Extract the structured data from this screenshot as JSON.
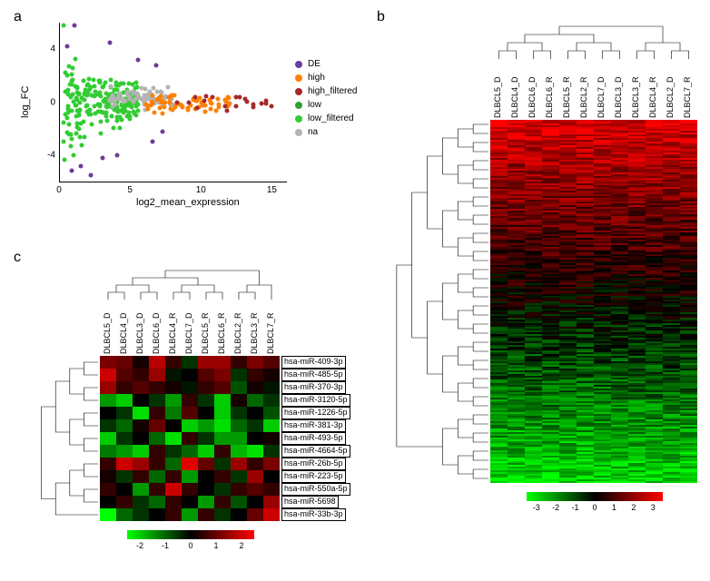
{
  "panel_labels": {
    "a": "a",
    "b": "b",
    "c": "c"
  },
  "scatter": {
    "type": "scatter",
    "xlabel": "log2_mean_expression",
    "ylabel": "log_FC",
    "xlim": [
      0,
      16
    ],
    "ylim": [
      -6,
      6
    ],
    "xticks": [
      0,
      5,
      10,
      15
    ],
    "yticks": [
      -4,
      0,
      4
    ],
    "background_color": "#ffffff",
    "legend_items": [
      {
        "label": "DE",
        "color": "#6a3d9a"
      },
      {
        "label": "high",
        "color": "#ff7f00"
      },
      {
        "label": "high_filtered",
        "color": "#a52a2a"
      },
      {
        "label": "low",
        "color": "#33a02c"
      },
      {
        "label": "low_filtered",
        "color": "#33cc33"
      },
      {
        "label": "na",
        "color": "#b3b3b3"
      }
    ],
    "marker_size": 5,
    "groups": {
      "low_filtered": {
        "color": "#33cc33",
        "n": 220,
        "x_range": [
          0.2,
          5.5
        ],
        "y_mean": 0,
        "y_spread": 3.0
      },
      "na": {
        "color": "#b3b3b3",
        "n": 70,
        "x_range": [
          3.5,
          8.0
        ],
        "y_mean": 0.3,
        "y_spread": 1.0
      },
      "high": {
        "color": "#ff7f00",
        "n": 60,
        "x_range": [
          6.0,
          12.0
        ],
        "y_mean": -0.2,
        "y_spread": 1.0
      },
      "high_filtered": {
        "color": "#a52a2a",
        "n": 20,
        "x_range": [
          8.0,
          15.5
        ],
        "y_mean": 0.0,
        "y_spread": 0.8
      },
      "DE": {
        "color": "#6a3d9a",
        "points": [
          [
            1.0,
            5.8
          ],
          [
            0.5,
            4.2
          ],
          [
            0.8,
            -5.2
          ],
          [
            1.5,
            -4.8
          ],
          [
            2.2,
            -5.5
          ],
          [
            3.0,
            -4.2
          ],
          [
            3.5,
            4.5
          ],
          [
            6.5,
            -3.0
          ],
          [
            7.2,
            -2.2
          ],
          [
            6.8,
            2.8
          ],
          [
            5.5,
            3.2
          ],
          [
            4.0,
            -4.0
          ]
        ]
      }
    }
  },
  "heatmap_large": {
    "type": "heatmap",
    "columns": [
      "DLBCL5_D",
      "DLBCL4_D",
      "DLBCL6_D",
      "DLBCL6_R",
      "DLBCL5_R",
      "DLBCL2_R",
      "DLBCL7_D",
      "DLBCL3_D",
      "DLBCL3_R",
      "DLBCL4_R",
      "DLBCL2_D",
      "DLBCL7_R"
    ],
    "n_rows": 200,
    "value_range": [
      -3.5,
      3.5
    ],
    "color_low": "#00ff00",
    "color_mid": "#000000",
    "color_high": "#ff0000",
    "colorbar_ticks": [
      -3,
      -2,
      -1,
      0,
      1,
      2,
      3
    ],
    "col_label_fontsize": 9
  },
  "heatmap_small": {
    "type": "heatmap",
    "columns": [
      "DLBCL5_D",
      "DLBCL4_D",
      "DLBCL3_D",
      "DLBCL6_D",
      "DLBCL4_R",
      "DLBCL7_D",
      "DLBCL5_R",
      "DLBCL6_R",
      "DLBCL2_R",
      "DLBCL3_R",
      "DLBCL7_R"
    ],
    "rows": [
      "hsa-miR-409-3p",
      "hsa-miR-485-5p",
      "hsa-miR-370-3p",
      "hsa-miR-3120-5p",
      "hsa-miR-1226-5p",
      "hsa-miR-381-3p",
      "hsa-miR-493-5p",
      "hsa-miR-4664-5p",
      "hsa-miR-26b-5p",
      "hsa-miR-223-5p",
      "hsa-miR-550a-5p",
      "hsa-miR-5698",
      "hsa-miR-33b-3p"
    ],
    "values": [
      [
        1.2,
        1.0,
        0.2,
        1.8,
        0.5,
        -0.5,
        1.5,
        1.5,
        0.5,
        1.2,
        0.8
      ],
      [
        2.0,
        0.8,
        0.5,
        1.5,
        -0.2,
        0.0,
        0.8,
        1.2,
        -0.5,
        0.5,
        0.2
      ],
      [
        1.5,
        0.5,
        0.8,
        0.5,
        0.2,
        -0.2,
        0.5,
        0.8,
        -0.8,
        0.2,
        -0.2
      ],
      [
        -1.5,
        -2.0,
        0.0,
        -0.5,
        -1.5,
        0.5,
        -0.5,
        -2.0,
        0.2,
        -1.0,
        -0.5
      ],
      [
        0.0,
        -0.5,
        -2.2,
        0.5,
        -1.2,
        0.8,
        0.0,
        -2.0,
        -0.5,
        0.0,
        -0.8
      ],
      [
        -0.5,
        -1.0,
        0.2,
        1.0,
        0.0,
        -2.0,
        -1.5,
        -2.2,
        -1.0,
        -0.5,
        -2.0
      ],
      [
        -2.0,
        -0.5,
        0.0,
        -1.0,
        -2.2,
        0.5,
        -0.5,
        -1.5,
        -1.5,
        0.0,
        0.2
      ],
      [
        -1.2,
        -1.5,
        -2.0,
        0.5,
        -0.5,
        -1.0,
        -2.0,
        0.5,
        -1.8,
        -2.2,
        -0.5
      ],
      [
        0.5,
        2.0,
        1.5,
        0.5,
        -1.0,
        2.2,
        1.0,
        -0.5,
        1.5,
        0.5,
        1.2
      ],
      [
        0.2,
        -0.5,
        0.5,
        -1.0,
        0.5,
        -1.5,
        0.0,
        0.5,
        -0.5,
        1.5,
        0.0
      ],
      [
        0.5,
        0.0,
        -1.5,
        0.5,
        2.0,
        0.5,
        0.0,
        -0.5,
        0.5,
        0.8,
        0.5
      ],
      [
        0.0,
        0.5,
        -0.5,
        -1.0,
        0.5,
        0.0,
        -1.5,
        0.5,
        -0.8,
        0.0,
        1.5
      ],
      [
        -2.5,
        -1.0,
        -0.5,
        0.0,
        0.5,
        -1.5,
        0.5,
        -0.5,
        0.0,
        1.0,
        2.0
      ]
    ],
    "value_range": [
      -2.5,
      2.5
    ],
    "color_low": "#00ff00",
    "color_mid": "#000000",
    "color_high": "#ff0000",
    "colorbar_ticks": [
      -2,
      -1,
      0,
      1,
      2
    ],
    "row_label_fontsize": 9,
    "col_label_fontsize": 9
  }
}
